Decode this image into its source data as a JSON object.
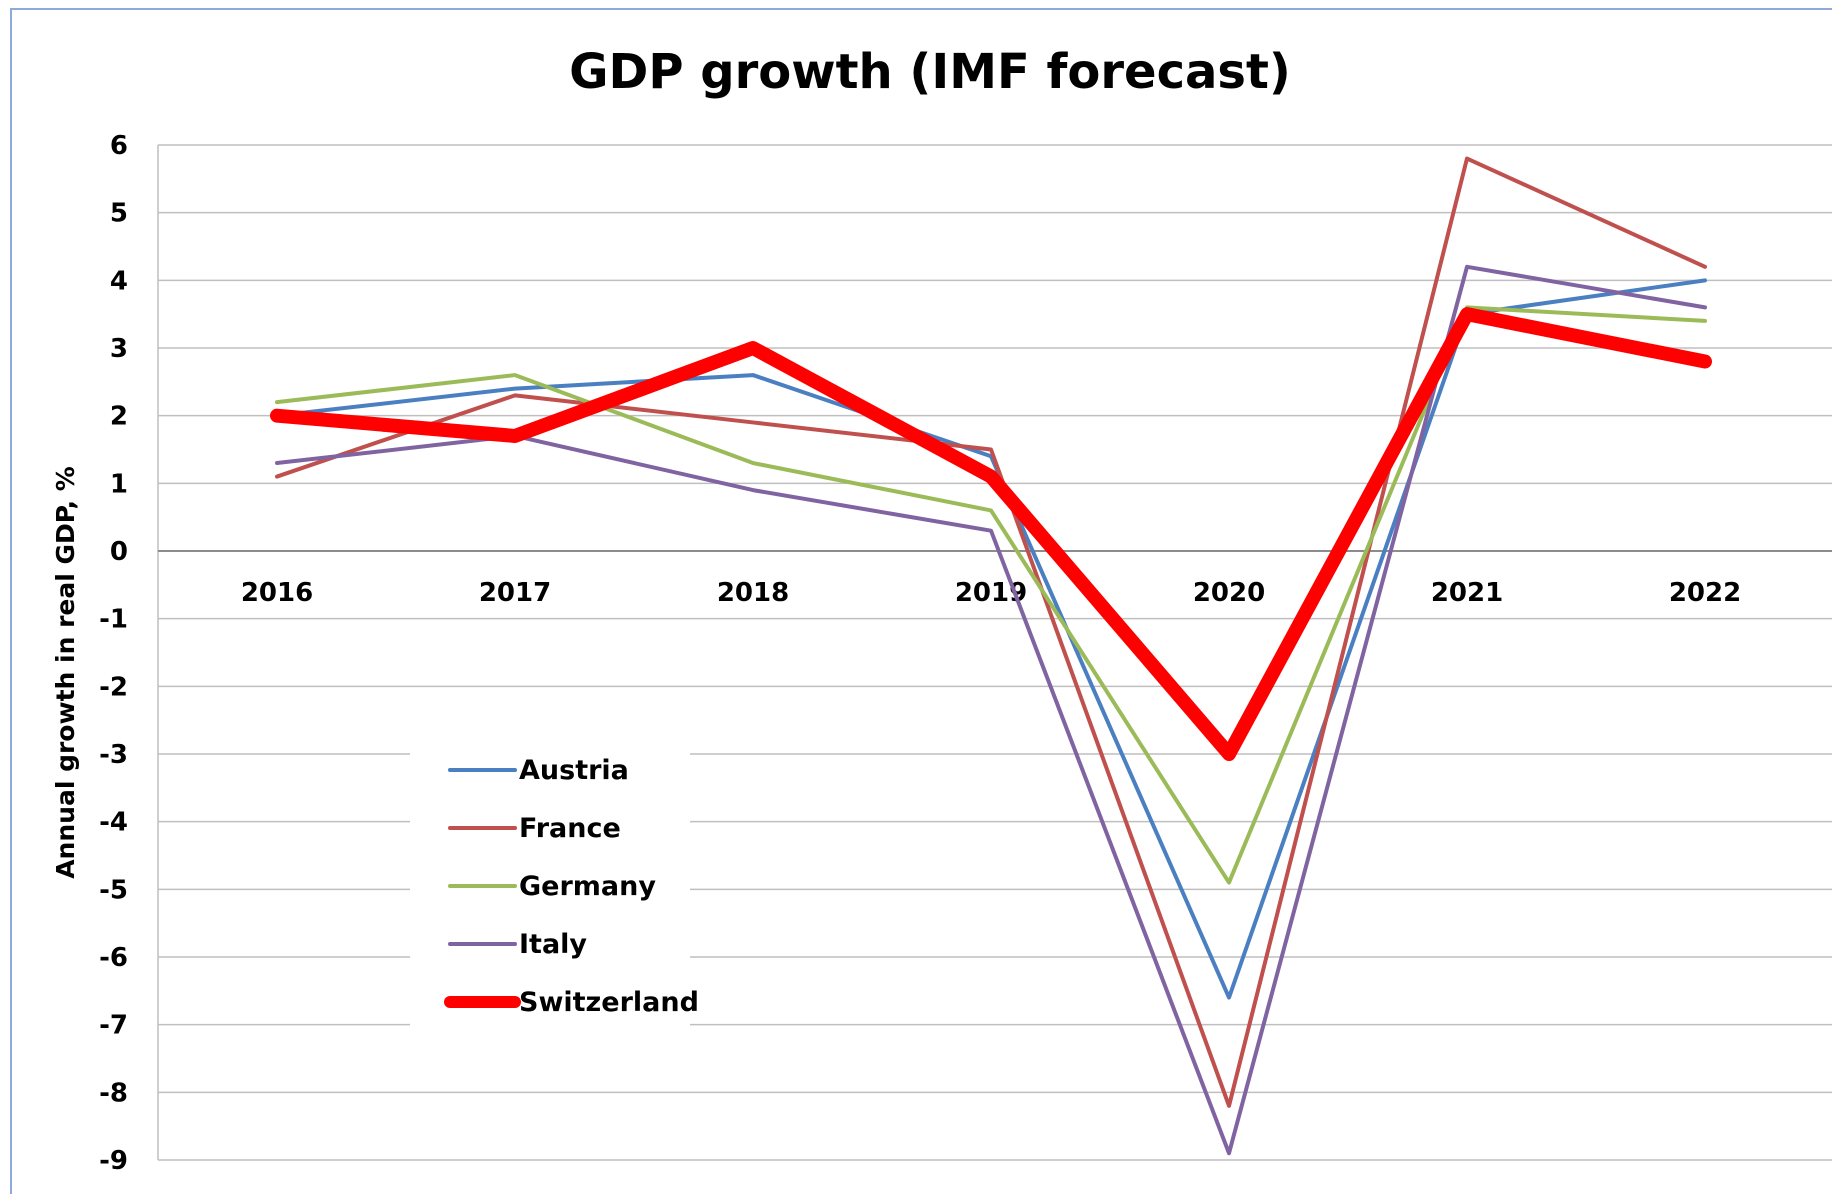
{
  "chart_data": {
    "type": "line",
    "title": "GDP growth (IMF forecast)",
    "xlabel": "",
    "ylabel": "Annual growth in real GDP, %",
    "x": [
      "2016",
      "2017",
      "2018",
      "2019",
      "2020",
      "2021",
      "2022"
    ],
    "ylim": [
      -9,
      6
    ],
    "yticks": [
      6,
      5,
      4,
      3,
      2,
      1,
      0,
      -1,
      -2,
      -3,
      -4,
      -5,
      -6,
      -7,
      -8,
      -9
    ],
    "grid": true,
    "legend_position": "lower-left",
    "series": [
      {
        "name": "Austria",
        "color": "#4a7fc1",
        "values": [
          2.0,
          2.4,
          2.6,
          1.4,
          -6.6,
          3.5,
          4.0
        ]
      },
      {
        "name": "France",
        "color": "#c0504d",
        "values": [
          1.1,
          2.3,
          1.9,
          1.5,
          -8.2,
          5.8,
          4.2
        ]
      },
      {
        "name": "Germany",
        "color": "#9bbb59",
        "values": [
          2.2,
          2.6,
          1.3,
          0.6,
          -4.9,
          3.6,
          3.4
        ]
      },
      {
        "name": "Italy",
        "color": "#8064a2",
        "values": [
          1.3,
          1.7,
          0.9,
          0.3,
          -8.9,
          4.2,
          3.6
        ]
      },
      {
        "name": "Switzerland",
        "color": "#ff0000",
        "values": [
          2.0,
          1.7,
          3.0,
          1.1,
          -3.0,
          3.5,
          2.8
        ],
        "emphasis": true
      }
    ]
  }
}
